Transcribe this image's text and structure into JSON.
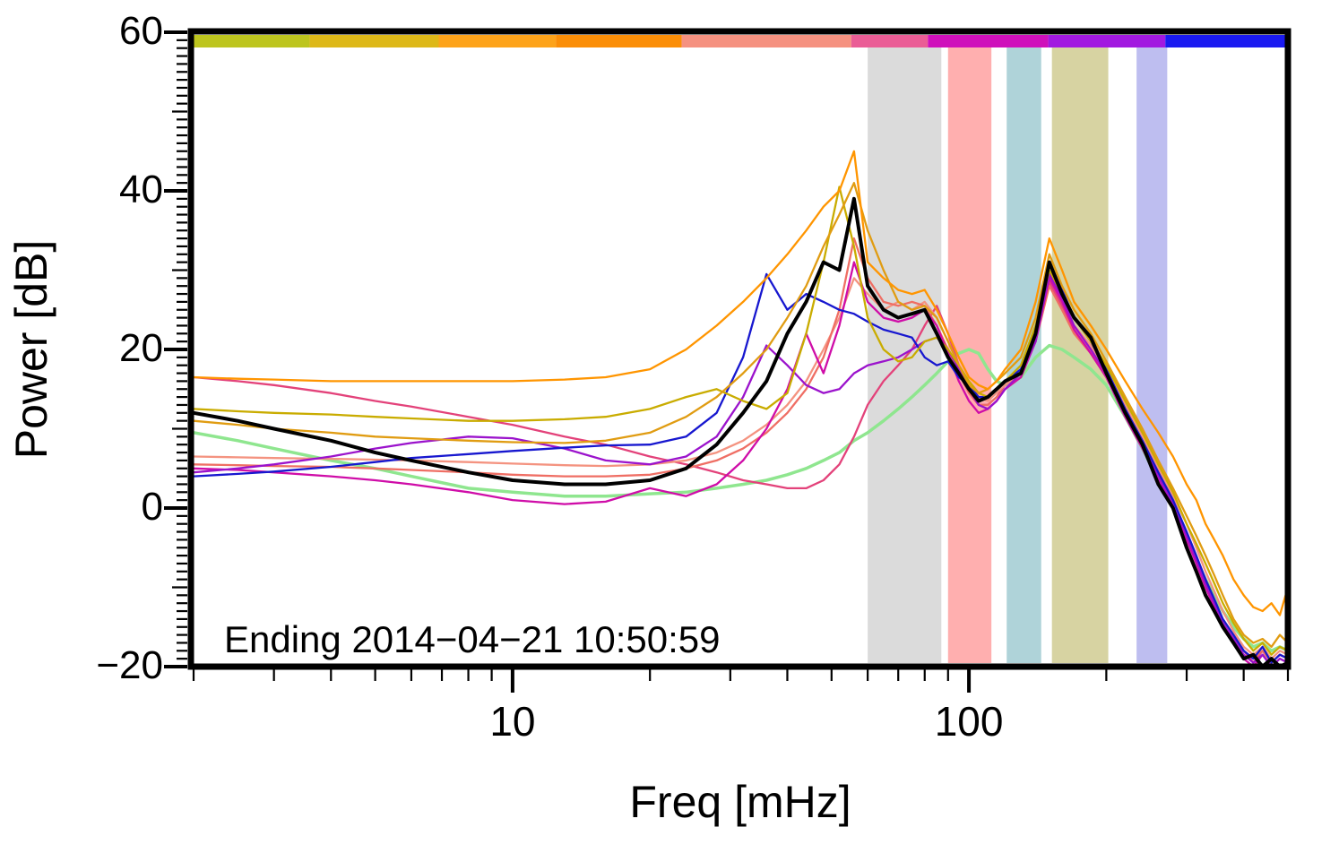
{
  "chart_data": {
    "type": "line",
    "title": "",
    "xlabel": "Freq [mHz]",
    "ylabel": "Power [dB]",
    "annotation": "Ending 2014−04−21 10:50:59",
    "xscale": "log",
    "xlim": [
      2,
      500
    ],
    "ylim": [
      -20,
      60
    ],
    "grid": false,
    "legend": "none",
    "yticks": [
      {
        "v": 60,
        "label": "60"
      },
      {
        "v": 40,
        "label": "40"
      },
      {
        "v": 20,
        "label": "20"
      },
      {
        "v": 0,
        "label": "0"
      },
      {
        "v": -20,
        "label": "−20"
      }
    ],
    "ytick_minor_step": 1,
    "xticks_major": [
      {
        "v": 10,
        "label": "10"
      },
      {
        "v": 100,
        "label": "100"
      }
    ],
    "xticks_minor": [
      2,
      3,
      4,
      5,
      6,
      7,
      8,
      9,
      20,
      30,
      40,
      50,
      60,
      70,
      80,
      90,
      200,
      300,
      400,
      500
    ],
    "top_strip": [
      {
        "from": 0.0,
        "to": 0.106,
        "color": "#bdc51e"
      },
      {
        "from": 0.106,
        "to": 0.224,
        "color": "#ddb818"
      },
      {
        "from": 0.224,
        "to": 0.331,
        "color": "#fda31a"
      },
      {
        "from": 0.331,
        "to": 0.446,
        "color": "#fb8e07"
      },
      {
        "from": 0.446,
        "to": 0.601,
        "color": "#f59180"
      },
      {
        "from": 0.601,
        "to": 0.671,
        "color": "#ea5d96"
      },
      {
        "from": 0.671,
        "to": 0.781,
        "color": "#cf10bb"
      },
      {
        "from": 0.781,
        "to": 0.888,
        "color": "#a219e0"
      },
      {
        "from": 0.888,
        "to": 1.0,
        "color": "#1a1af0"
      }
    ],
    "bands": [
      {
        "name": "band-gray",
        "x1": 60,
        "x2": 87,
        "color": "rgba(190,190,190,0.55)"
      },
      {
        "name": "band-red",
        "x1": 90,
        "x2": 112,
        "color": "rgba(255,110,110,0.55)"
      },
      {
        "name": "band-teal",
        "x1": 121,
        "x2": 144,
        "color": "rgba(110,175,185,0.55)"
      },
      {
        "name": "band-olive",
        "x1": 152,
        "x2": 202,
        "color": "rgba(175,168,70,0.5)"
      },
      {
        "name": "band-periwinkle",
        "x1": 233,
        "x2": 272,
        "color": "rgba(125,125,225,0.5)"
      }
    ],
    "x": [
      2,
      2.5,
      3,
      4,
      5,
      6,
      8,
      10,
      13,
      16,
      20,
      24,
      28,
      32,
      36,
      40,
      44,
      48,
      52,
      56,
      60,
      65,
      70,
      75,
      80,
      85,
      90,
      95,
      100,
      105,
      110,
      115,
      120,
      130,
      140,
      150,
      160,
      170,
      185,
      200,
      220,
      240,
      260,
      280,
      300,
      315,
      330,
      345,
      360,
      380,
      400,
      420,
      440,
      460,
      480,
      500
    ],
    "series": [
      {
        "name": "green",
        "color": "#8fe68f",
        "width": 3.5,
        "y": [
          9.5,
          8.5,
          7.5,
          6,
          5,
          4,
          2.5,
          2,
          1.5,
          1.5,
          1.8,
          2,
          2.5,
          3,
          3.5,
          4.2,
          5,
          6,
          7,
          8.5,
          9.5,
          11,
          12.5,
          14,
          15.5,
          17,
          18.5,
          19.5,
          20,
          19.5,
          17.5,
          16,
          15.5,
          16.5,
          19,
          20.5,
          20,
          19,
          17.5,
          15.5,
          11.5,
          7.5,
          3.5,
          0,
          -4,
          -6.5,
          -9,
          -11,
          -13,
          -15,
          -16.5,
          -17.5,
          -17,
          -18,
          -17.5,
          -18
        ]
      },
      {
        "name": "crimson",
        "color": "#e3427a",
        "width": 2.3,
        "y": [
          16.5,
          16,
          15.5,
          14.5,
          13.5,
          12.8,
          11.5,
          10.5,
          9,
          8,
          6.5,
          5.5,
          4.5,
          3.5,
          3,
          2.5,
          2.5,
          3.5,
          5.5,
          9,
          13,
          16,
          18,
          20,
          23,
          25.5,
          22,
          18,
          15,
          13,
          13,
          14,
          15.5,
          17,
          21.5,
          28.5,
          25.5,
          22.5,
          19.5,
          16.5,
          12,
          8,
          4,
          0.5,
          -3.5,
          -6.5,
          -9.5,
          -12,
          -14.5,
          -16.5,
          -18,
          -19.5,
          -18,
          -19.5,
          -18.5,
          -19
        ]
      },
      {
        "name": "salmon",
        "color": "#f49380",
        "width": 2.3,
        "y": [
          6.5,
          6.4,
          6.3,
          6.2,
          6.1,
          6,
          5.8,
          5.6,
          5.4,
          5.3,
          5.5,
          6,
          7,
          8.5,
          10.5,
          13,
          16,
          20,
          24,
          29,
          27,
          25,
          26,
          25,
          26,
          24,
          21,
          18,
          16,
          14,
          13.5,
          14.5,
          15.5,
          17,
          22,
          29,
          26,
          23,
          20.5,
          17.5,
          13,
          9,
          5,
          1.5,
          -2,
          -5,
          -8,
          -10.5,
          -13,
          -15.5,
          -17.5,
          -18.5,
          -17.5,
          -19,
          -18,
          -18.5
        ]
      },
      {
        "name": "coral",
        "color": "#ef6e64",
        "width": 2.3,
        "y": [
          5.5,
          5.4,
          5.3,
          5.2,
          5,
          4.8,
          4.5,
          4.2,
          4,
          4,
          4.2,
          5,
          6,
          7.5,
          9.5,
          12,
          15,
          19,
          25,
          34,
          29,
          26,
          25.5,
          26,
          25.5,
          23,
          20,
          17,
          14.5,
          13,
          13,
          14,
          15,
          16.5,
          21,
          28,
          25,
          22,
          19.5,
          16.5,
          12,
          8,
          4,
          0.5,
          -3.5,
          -6.5,
          -9,
          -11.5,
          -14,
          -16,
          -18,
          -19,
          -18,
          -19.5,
          -18.5,
          -19
        ]
      },
      {
        "name": "magenta",
        "color": "#cf0da8",
        "width": 2.3,
        "y": [
          5,
          4.8,
          4.5,
          4,
          3.5,
          3,
          2,
          1,
          0.5,
          0.8,
          2.5,
          1.5,
          3,
          6,
          10,
          15,
          22,
          17,
          23,
          31,
          26,
          24,
          23.5,
          24,
          25,
          23,
          19.5,
          16,
          13.5,
          12,
          12.5,
          13.5,
          15,
          16.5,
          21,
          29,
          26,
          22.5,
          19.5,
          16.5,
          11.5,
          7.5,
          3.5,
          0,
          -4,
          -7,
          -10,
          -12.5,
          -15,
          -17,
          -19,
          -20,
          -18.5,
          -20,
          -19,
          -19.5
        ]
      },
      {
        "name": "purple",
        "color": "#9b13cc",
        "width": 2.3,
        "y": [
          4.5,
          5,
          5.5,
          6.5,
          7.5,
          8.2,
          9,
          8.8,
          7.5,
          6,
          5.5,
          6.5,
          9,
          14,
          20.5,
          18,
          15.5,
          14.5,
          15,
          17,
          18,
          18.5,
          19,
          20,
          21,
          21.5,
          20,
          17.5,
          15,
          13,
          12.5,
          13.5,
          15,
          17,
          21,
          29.5,
          26.5,
          23,
          20,
          17,
          12,
          8,
          4,
          0.5,
          -3.5,
          -6.5,
          -9.5,
          -12,
          -14.5,
          -16.5,
          -18.5,
          -19.5,
          -18.5,
          -20,
          -19,
          -19.5
        ]
      },
      {
        "name": "blue",
        "color": "#1717cf",
        "width": 2.3,
        "y": [
          4,
          4.3,
          4.6,
          5.2,
          5.8,
          6.3,
          6.8,
          7.2,
          7.6,
          7.9,
          8,
          9,
          12,
          19,
          29.5,
          25,
          27,
          26,
          25,
          24.5,
          23.5,
          22.5,
          22,
          21.5,
          19,
          18,
          18.5,
          16.5,
          15.5,
          14,
          14,
          15,
          16,
          17.5,
          22,
          31,
          27.5,
          24,
          21,
          17.5,
          12.5,
          8.5,
          4.5,
          1,
          -3,
          -6,
          -9,
          -11.5,
          -14,
          -16,
          -18,
          -19,
          -17.5,
          -19.5,
          -18.5,
          -19
        ]
      },
      {
        "name": "olive",
        "color": "#c9ac00",
        "width": 2.3,
        "y": [
          12.5,
          12.2,
          12,
          11.8,
          11.5,
          11.3,
          11,
          11,
          11.2,
          11.5,
          12.5,
          14,
          15,
          13.5,
          12.5,
          14.5,
          22,
          31,
          40.5,
          33,
          24,
          20,
          18.5,
          19,
          21,
          21.5,
          20,
          18,
          16,
          14.5,
          14,
          15,
          16,
          18,
          23,
          30,
          27,
          24,
          21,
          18,
          13.5,
          9.5,
          5.5,
          2,
          -2,
          -4.5,
          -7,
          -9.5,
          -12,
          -14.5,
          -16.5,
          -18,
          -17,
          -18.5,
          -17.5,
          -18
        ]
      },
      {
        "name": "goldenrod",
        "color": "#e09c12",
        "width": 2.3,
        "y": [
          11,
          10.5,
          10,
          9.5,
          9,
          8.8,
          8.5,
          8.3,
          8.2,
          8.5,
          9.5,
          11.5,
          14,
          17,
          20,
          24,
          28,
          33,
          37,
          41,
          35,
          30,
          26,
          25,
          25.5,
          24,
          21,
          18,
          15.5,
          14.5,
          15,
          16,
          17,
          19,
          24,
          32,
          28,
          25,
          22,
          18.5,
          14,
          10,
          6,
          2.5,
          -1,
          -3.5,
          -6,
          -8.5,
          -11,
          -14,
          -16,
          -17,
          -16.5,
          -17.5,
          -16,
          -17
        ]
      },
      {
        "name": "orange",
        "color": "#ff9500",
        "width": 2.3,
        "y": [
          16.5,
          16.3,
          16.2,
          16,
          16,
          16,
          16,
          16,
          16.2,
          16.5,
          17.5,
          20,
          23,
          26,
          29,
          32,
          35,
          38,
          40,
          45,
          31,
          29,
          27.5,
          27,
          27.5,
          25,
          22,
          19,
          16.5,
          15.5,
          15,
          16,
          17.5,
          20,
          26,
          34,
          30,
          26,
          23,
          20,
          16,
          12.5,
          9.5,
          6.5,
          3,
          1,
          -2,
          -4,
          -6,
          -9,
          -11,
          -12.5,
          -13,
          -12,
          -13.5,
          -10
        ]
      },
      {
        "name": "black",
        "color": "#000000",
        "width": 4,
        "y": [
          12,
          11,
          10,
          8.5,
          7,
          6,
          4.5,
          3.5,
          3,
          3,
          3.5,
          5,
          8,
          12,
          16,
          22,
          26,
          31,
          30,
          39,
          28,
          25,
          24,
          24.5,
          25,
          22,
          19,
          17,
          15,
          13.5,
          14,
          15,
          16,
          17,
          22,
          31,
          27,
          24,
          21.5,
          17,
          12,
          8,
          3,
          0,
          -5,
          -8,
          -11,
          -13,
          -15,
          -17,
          -19,
          -18.5,
          -20,
          -19,
          -20,
          -19.5
        ]
      }
    ]
  }
}
